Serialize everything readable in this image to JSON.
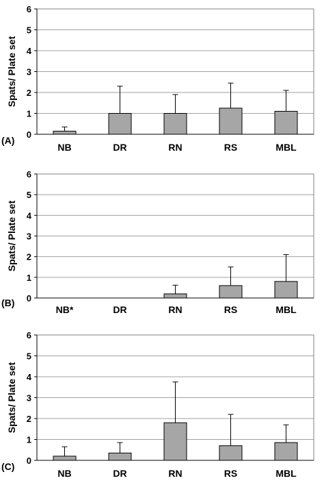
{
  "chart_data": [
    {
      "type": "bar",
      "panel_label": "(A)",
      "ylabel": "Spats/ Plate set",
      "categories": [
        "NB",
        "DR",
        "RN",
        "RS",
        "MBL"
      ],
      "values": [
        0.15,
        1.0,
        1.0,
        1.25,
        1.1
      ],
      "errors": [
        0.2,
        1.3,
        0.9,
        1.2,
        1.0
      ],
      "ylim": [
        0,
        6
      ],
      "yticks": [
        "0",
        "1",
        "2",
        "3",
        "4",
        "5",
        "6"
      ],
      "grid": true,
      "bar_color": "#a6a6a6"
    },
    {
      "type": "bar",
      "panel_label": "(B)",
      "ylabel": "Spats/ Plate set",
      "categories": [
        "NB*",
        "DR",
        "RN",
        "RS",
        "MBL"
      ],
      "values": [
        0,
        0,
        0.2,
        0.6,
        0.8
      ],
      "errors": [
        0,
        0,
        0.42,
        0.9,
        1.3
      ],
      "ylim": [
        0,
        6
      ],
      "yticks": [
        "0",
        "1",
        "2",
        "3",
        "4",
        "5",
        "6"
      ],
      "grid": true,
      "bar_color": "#a6a6a6"
    },
    {
      "type": "bar",
      "panel_label": "(C)",
      "ylabel": "Spats/ Plate set",
      "categories": [
        "NB",
        "DR",
        "RN",
        "RS",
        "MBL"
      ],
      "values": [
        0.2,
        0.35,
        1.8,
        0.7,
        0.85
      ],
      "errors": [
        0.45,
        0.5,
        1.95,
        1.5,
        0.85
      ],
      "ylim": [
        0,
        6
      ],
      "yticks": [
        "0",
        "1",
        "2",
        "3",
        "4",
        "5",
        "6"
      ],
      "grid": true,
      "bar_color": "#a6a6a6"
    }
  ]
}
